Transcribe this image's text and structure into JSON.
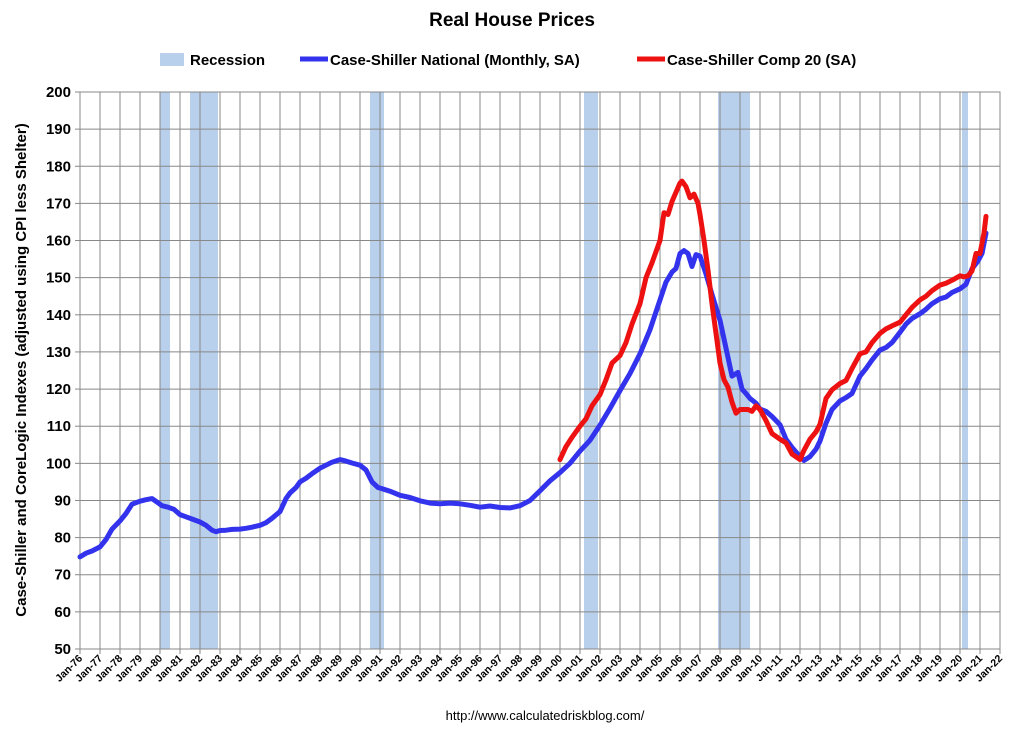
{
  "chart_data": {
    "type": "line",
    "title": "Real House Prices",
    "ylabel": "Case-Shiller and CoreLogic Indexes (adjusted using CPI less Shelter)",
    "xlabel": "",
    "source": "http://www.calculatedriskblog.com/",
    "ylim": [
      50,
      200
    ],
    "yticks": [
      50,
      60,
      70,
      80,
      90,
      100,
      110,
      120,
      130,
      140,
      150,
      160,
      170,
      180,
      190,
      200
    ],
    "xlim": [
      1976,
      2022
    ],
    "xtick_labels": [
      "Jan-76",
      "Jan-77",
      "Jan-78",
      "Jan-79",
      "Jan-80",
      "Jan-81",
      "Jan-82",
      "Jan-83",
      "Jan-84",
      "Jan-85",
      "Jan-86",
      "Jan-87",
      "Jan-88",
      "Jan-89",
      "Jan-90",
      "Jan-91",
      "Jan-92",
      "Jan-93",
      "Jan-94",
      "Jan-95",
      "Jan-96",
      "Jan-97",
      "Jan-98",
      "Jan-99",
      "Jan-00",
      "Jan-01",
      "Jan-02",
      "Jan-03",
      "Jan-04",
      "Jan-05",
      "Jan-06",
      "Jan-07",
      "Jan-08",
      "Jan-09",
      "Jan-10",
      "Jan-11",
      "Jan-12",
      "Jan-13",
      "Jan-14",
      "Jan-15",
      "Jan-16",
      "Jan-17",
      "Jan-18",
      "Jan-19",
      "Jan-20",
      "Jan-21",
      "Jan-22"
    ],
    "grid": true,
    "legend_position": "top",
    "recession_color": "#b9d0ec",
    "recessions": [
      {
        "name": "Recession",
        "start": 1980.0,
        "end": 1980.5
      },
      {
        "name": "Recession",
        "start": 1981.5,
        "end": 1982.9
      },
      {
        "name": "Recession",
        "start": 1990.5,
        "end": 1991.2
      },
      {
        "name": "Recession",
        "start": 2001.2,
        "end": 2001.9
      },
      {
        "name": "Recession",
        "start": 2007.9,
        "end": 2009.5
      },
      {
        "name": "Recession",
        "start": 2020.1,
        "end": 2020.4
      }
    ],
    "series": [
      {
        "name": "Case-Shiller National (Monthly, SA)",
        "color": "#3333ee",
        "x": [
          1976.0,
          1976.3,
          1976.6,
          1977.0,
          1977.3,
          1977.6,
          1978.0,
          1978.3,
          1978.6,
          1979.0,
          1979.3,
          1979.6,
          1980.0,
          1980.1,
          1980.4,
          1980.7,
          1981.0,
          1981.3,
          1981.6,
          1982.0,
          1982.3,
          1982.6,
          1982.8,
          1983.0,
          1983.3,
          1983.6,
          1984.0,
          1984.3,
          1984.6,
          1985.0,
          1985.3,
          1985.6,
          1986.0,
          1986.3,
          1986.5,
          1986.8,
          1987.0,
          1987.3,
          1987.6,
          1988.0,
          1988.3,
          1988.6,
          1989.0,
          1989.3,
          1989.6,
          1990.0,
          1990.3,
          1990.6,
          1990.9,
          1991.2,
          1991.5,
          1992.0,
          1992.5,
          1993.0,
          1993.5,
          1994.0,
          1994.5,
          1995.0,
          1995.5,
          1996.0,
          1996.5,
          1997.0,
          1997.5,
          1998.0,
          1998.5,
          1999.0,
          1999.5,
          2000.0,
          2000.5,
          2001.0,
          2001.5,
          2002.0,
          2002.5,
          2003.0,
          2003.5,
          2004.0,
          2004.5,
          2005.0,
          2005.3,
          2005.6,
          2005.8,
          2006.0,
          2006.2,
          2006.4,
          2006.6,
          2006.8,
          2007.0,
          2007.3,
          2007.6,
          2008.0,
          2008.3,
          2008.6,
          2008.9,
          2009.1,
          2009.3,
          2009.5,
          2009.8,
          2010.0,
          2010.3,
          2010.6,
          2011.0,
          2011.3,
          2011.6,
          2012.0,
          2012.2,
          2012.5,
          2012.8,
          2013.0,
          2013.3,
          2013.6,
          2014.0,
          2014.3,
          2014.6,
          2015.0,
          2015.3,
          2015.6,
          2016.0,
          2016.3,
          2016.6,
          2017.0,
          2017.3,
          2017.6,
          2018.0,
          2018.3,
          2018.6,
          2019.0,
          2019.3,
          2019.6,
          2020.0,
          2020.3,
          2020.6,
          2020.9,
          2021.1,
          2021.3
        ],
        "values": [
          74.8,
          75.8,
          76.4,
          77.5,
          79.5,
          82.3,
          84.5,
          86.5,
          89.0,
          89.8,
          90.2,
          90.5,
          89.0,
          88.6,
          88.2,
          87.6,
          86.2,
          85.6,
          85.0,
          84.2,
          83.3,
          82.0,
          81.6,
          81.9,
          82.0,
          82.2,
          82.3,
          82.5,
          82.8,
          83.3,
          84.0,
          85.2,
          87.0,
          90.5,
          92.0,
          93.5,
          95.0,
          96.0,
          97.2,
          98.7,
          99.5,
          100.3,
          101.0,
          100.6,
          100.1,
          99.5,
          98.2,
          95.0,
          93.5,
          93.0,
          92.5,
          91.4,
          90.8,
          89.9,
          89.3,
          89.1,
          89.3,
          89.1,
          88.7,
          88.2,
          88.5,
          88.1,
          88.0,
          88.6,
          90.0,
          92.6,
          95.3,
          97.5,
          100.0,
          103.3,
          106.2,
          110.3,
          114.8,
          119.6,
          124.2,
          129.5,
          136.0,
          144.0,
          148.8,
          151.5,
          152.5,
          156.5,
          157.3,
          156.5,
          153.0,
          156.2,
          155.8,
          151.0,
          145.5,
          138.5,
          131.0,
          123.5,
          124.5,
          120.0,
          118.8,
          117.5,
          116.2,
          114.6,
          114.0,
          112.6,
          110.4,
          106.5,
          104.3,
          101.8,
          100.8,
          101.8,
          103.8,
          106.0,
          110.8,
          114.5,
          116.8,
          117.7,
          118.8,
          123.5,
          125.5,
          127.8,
          130.5,
          131.2,
          132.5,
          135.3,
          137.5,
          139.0,
          140.3,
          141.5,
          143.0,
          144.3,
          144.8,
          146.0,
          147.0,
          148.2,
          152.4,
          154.5,
          156.5,
          162.0
        ]
      },
      {
        "name": "Case-Shiller Comp 20  (SA)",
        "color": "#ee1111",
        "x": [
          2000.0,
          2000.3,
          2000.6,
          2001.0,
          2001.3,
          2001.6,
          2002.0,
          2002.3,
          2002.6,
          2003.0,
          2003.3,
          2003.6,
          2004.0,
          2004.3,
          2004.6,
          2005.0,
          2005.2,
          2005.4,
          2005.6,
          2005.8,
          2006.0,
          2006.1,
          2006.3,
          2006.5,
          2006.7,
          2006.9,
          2007.0,
          2007.2,
          2007.4,
          2007.6,
          2007.8,
          2008.0,
          2008.2,
          2008.4,
          2008.6,
          2008.8,
          2009.0,
          2009.2,
          2009.4,
          2009.6,
          2009.8,
          2010.0,
          2010.3,
          2010.6,
          2011.0,
          2011.3,
          2011.6,
          2012.0,
          2012.2,
          2012.5,
          2012.8,
          2013.0,
          2013.3,
          2013.6,
          2014.0,
          2014.3,
          2014.6,
          2015.0,
          2015.3,
          2015.6,
          2016.0,
          2016.3,
          2016.6,
          2017.0,
          2017.3,
          2017.6,
          2018.0,
          2018.3,
          2018.6,
          2019.0,
          2019.3,
          2019.6,
          2020.0,
          2020.2,
          2020.4,
          2020.6,
          2020.8,
          2021.0,
          2021.2,
          2021.3
        ],
        "values": [
          101.0,
          104.5,
          107.0,
          110.0,
          112.0,
          115.5,
          118.5,
          122.5,
          127.0,
          129.0,
          132.5,
          137.5,
          143.0,
          150.0,
          154.0,
          160.0,
          167.5,
          167.0,
          170.5,
          173.0,
          175.5,
          176.0,
          174.5,
          171.5,
          172.5,
          170.0,
          167.0,
          160.0,
          152.0,
          143.0,
          135.0,
          127.0,
          122.5,
          120.5,
          116.5,
          113.5,
          114.5,
          114.5,
          114.5,
          114.0,
          115.5,
          114.5,
          111.5,
          108.0,
          106.5,
          105.5,
          102.5,
          101.0,
          103.5,
          106.5,
          108.5,
          110.5,
          117.5,
          119.8,
          121.5,
          122.3,
          125.5,
          129.5,
          130.0,
          132.5,
          135.0,
          136.2,
          137.0,
          138.0,
          140.0,
          142.0,
          144.0,
          145.0,
          146.5,
          148.0,
          148.5,
          149.3,
          150.5,
          150.2,
          150.5,
          151.8,
          156.5,
          156.5,
          162.0,
          166.5
        ]
      }
    ]
  }
}
